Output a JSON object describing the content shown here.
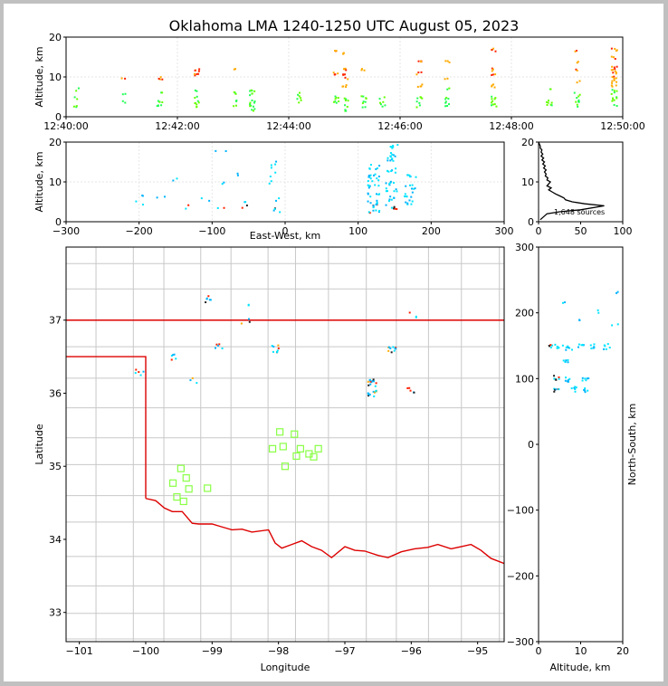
{
  "title": "Oklahoma LMA 1240-1250 UTC August 05, 2023",
  "colors": {
    "border": "#000000",
    "state_line": "#dd0000",
    "county_line": "#c8c8c8",
    "station": "#88ff44",
    "source_scale": [
      "#00e5ff",
      "#00b4ff",
      "#22ff55",
      "#66ff00",
      "#ffaa00",
      "#ff2200",
      "#222222"
    ]
  },
  "chart_data": [
    {
      "type": "scatter",
      "name_id": "time-altitude",
      "xlabel": "",
      "ylabel": "Altitude, km",
      "xlim": [
        "12:40:00",
        "12:50:00"
      ],
      "ylim": [
        0,
        20
      ],
      "x_ticks": [
        "12:40:00",
        "12:42:00",
        "12:44:00",
        "12:46:00",
        "12:48:00",
        "12:50:00"
      ],
      "y_ticks": [
        0,
        10,
        20
      ],
      "grid": true,
      "clusters": [
        {
          "t": "12:40:10",
          "alt": [
            3,
            5,
            7
          ]
        },
        {
          "t": "12:41:00",
          "alt": [
            4,
            6,
            10
          ]
        },
        {
          "t": "12:41:40",
          "alt": [
            3,
            4,
            6,
            10
          ]
        },
        {
          "t": "12:42:20",
          "alt": [
            3,
            4,
            5,
            7,
            11,
            12
          ]
        },
        {
          "t": "12:43:00",
          "alt": [
            3,
            4,
            6,
            12
          ]
        },
        {
          "t": "12:43:20",
          "alt": [
            2,
            3,
            4,
            6,
            7
          ]
        },
        {
          "t": "12:44:10",
          "alt": [
            4,
            5,
            6
          ]
        },
        {
          "t": "12:44:50",
          "alt": [
            4,
            5,
            11,
            17
          ]
        },
        {
          "t": "12:45:00",
          "alt": [
            2,
            3,
            4,
            5,
            8,
            10,
            11,
            12,
            16
          ]
        },
        {
          "t": "12:45:20",
          "alt": [
            3,
            4,
            5,
            12
          ]
        },
        {
          "t": "12:45:40",
          "alt": [
            3,
            4,
            5
          ]
        },
        {
          "t": "12:46:20",
          "alt": [
            3,
            4,
            5,
            8,
            11,
            14
          ]
        },
        {
          "t": "12:46:50",
          "alt": [
            3,
            4,
            5,
            7,
            10,
            14
          ]
        },
        {
          "t": "12:47:40",
          "alt": [
            3,
            4,
            5,
            8,
            11,
            12,
            17
          ]
        },
        {
          "t": "12:48:40",
          "alt": [
            3,
            4,
            7
          ]
        },
        {
          "t": "12:49:10",
          "alt": [
            3,
            4,
            5,
            6,
            9,
            12,
            14,
            17
          ]
        },
        {
          "t": "12:49:50",
          "alt": [
            3,
            4,
            5,
            6,
            7,
            8,
            9,
            10,
            11,
            12,
            13,
            15,
            17
          ]
        }
      ]
    },
    {
      "type": "scatter",
      "name_id": "east-west-altitude",
      "xlabel": "East-West, km",
      "ylabel": "Altitude, km",
      "xlim": [
        -300,
        300
      ],
      "ylim": [
        0,
        20
      ],
      "x_ticks": [
        -300,
        -200,
        -100,
        0,
        100,
        200,
        300
      ],
      "y_ticks": [
        0,
        10,
        20
      ],
      "grid": true,
      "clusters": [
        {
          "x": -200,
          "alt": [
            5,
            7
          ]
        },
        {
          "x": -170,
          "alt": [
            6
          ]
        },
        {
          "x": -150,
          "alt": [
            11
          ]
        },
        {
          "x": -135,
          "alt": [
            4
          ]
        },
        {
          "x": -110,
          "alt": [
            6
          ]
        },
        {
          "x": -90,
          "alt": [
            4,
            10,
            18
          ]
        },
        {
          "x": -60,
          "alt": [
            4,
            5,
            12
          ]
        },
        {
          "x": -15,
          "alt": [
            3,
            4,
            6,
            10,
            12,
            14,
            15
          ]
        },
        {
          "x": 120,
          "alt": [
            3,
            4,
            5,
            7,
            9,
            11,
            12,
            14
          ]
        },
        {
          "x": 145,
          "alt": [
            4,
            6,
            8,
            10,
            13,
            16,
            17,
            19
          ]
        },
        {
          "x": 170,
          "alt": [
            5,
            7,
            9,
            12
          ]
        }
      ]
    },
    {
      "type": "line",
      "name_id": "altitude-histogram",
      "xlabel": "",
      "ylabel": "",
      "xlim": [
        0,
        100
      ],
      "ylim": [
        0,
        20
      ],
      "x_ticks": [
        0,
        50,
        100
      ],
      "y_ticks": [
        0,
        10,
        20
      ],
      "annotation": "1,648 sources",
      "profile": [
        [
          2,
          0.5
        ],
        [
          10,
          2
        ],
        [
          25,
          2.5
        ],
        [
          50,
          3
        ],
        [
          78,
          4
        ],
        [
          55,
          4.5
        ],
        [
          40,
          5
        ],
        [
          32,
          5.5
        ],
        [
          30,
          6
        ],
        [
          25,
          6.5
        ],
        [
          20,
          7
        ],
        [
          16,
          7.5
        ],
        [
          12,
          8
        ],
        [
          15,
          8.5
        ],
        [
          10,
          9
        ],
        [
          12,
          9.5
        ],
        [
          14,
          10
        ],
        [
          10,
          10.5
        ],
        [
          11,
          11
        ],
        [
          8,
          11.5
        ],
        [
          9,
          12
        ],
        [
          7,
          12.5
        ],
        [
          9,
          13
        ],
        [
          6,
          13.5
        ],
        [
          8,
          14
        ],
        [
          5,
          14.5
        ],
        [
          7,
          15
        ],
        [
          4,
          15.5
        ],
        [
          6,
          16
        ],
        [
          3,
          16.5
        ],
        [
          5,
          17
        ],
        [
          3,
          17.5
        ],
        [
          4,
          18
        ],
        [
          2,
          18.5
        ],
        [
          2,
          19
        ],
        [
          1,
          19.5
        ],
        [
          0,
          20
        ]
      ]
    },
    {
      "type": "scatter",
      "name_id": "plan-view-map",
      "xlabel": "Longitude",
      "ylabel": "Latitude",
      "xlim": [
        -101.2,
        -94.6
      ],
      "ylim": [
        32.6,
        38.0
      ],
      "x_ticks": [
        -101,
        -100,
        -99,
        -98,
        -97,
        -96,
        -95
      ],
      "y_ticks": [
        33,
        34,
        35,
        36,
        37
      ],
      "clusters": [
        {
          "lon": -99.1,
          "lat": 37.3,
          "n": 6
        },
        {
          "lon": -98.5,
          "lat": 37.2,
          "n": 2
        },
        {
          "lon": -98.5,
          "lat": 37.0,
          "n": 3
        },
        {
          "lon": -98.9,
          "lat": 36.65,
          "n": 5
        },
        {
          "lon": -98.05,
          "lat": 36.62,
          "n": 8
        },
        {
          "lon": -99.6,
          "lat": 36.5,
          "n": 5
        },
        {
          "lon": -100.1,
          "lat": 36.3,
          "n": 5
        },
        {
          "lon": -99.3,
          "lat": 36.2,
          "n": 3
        },
        {
          "lon": -96.3,
          "lat": 36.6,
          "n": 10
        },
        {
          "lon": -96.0,
          "lat": 37.1,
          "n": 3
        },
        {
          "lon": -96.6,
          "lat": 36.15,
          "n": 12
        },
        {
          "lon": -96.6,
          "lat": 36.0,
          "n": 12
        },
        {
          "lon": -96.0,
          "lat": 36.05,
          "n": 5
        }
      ],
      "stations": [
        [
          -97.98,
          35.47
        ],
        [
          -97.76,
          35.44
        ],
        [
          -98.09,
          35.24
        ],
        [
          -97.93,
          35.27
        ],
        [
          -97.67,
          35.24
        ],
        [
          -97.54,
          35.17
        ],
        [
          -97.4,
          35.24
        ],
        [
          -97.73,
          35.14
        ],
        [
          -97.47,
          35.13
        ],
        [
          -97.9,
          35.0
        ],
        [
          -99.47,
          34.97
        ],
        [
          -99.39,
          34.84
        ],
        [
          -99.59,
          34.77
        ],
        [
          -99.35,
          34.69
        ],
        [
          -99.07,
          34.7
        ],
        [
          -99.53,
          34.58
        ],
        [
          -99.43,
          34.52
        ]
      ],
      "ok_border": {
        "north": [
          [
            -101.2,
            37.0
          ],
          [
            -94.6,
            37.0
          ]
        ],
        "panhandle": [
          [
            -101.2,
            36.5
          ],
          [
            -100.0,
            36.5
          ],
          [
            -100.0,
            34.56
          ]
        ],
        "red_river": [
          [
            -100.0,
            34.56
          ],
          [
            -99.85,
            34.53
          ],
          [
            -99.72,
            34.43
          ],
          [
            -99.6,
            34.38
          ],
          [
            -99.45,
            34.38
          ],
          [
            -99.3,
            34.22
          ],
          [
            -99.2,
            34.21
          ],
          [
            -99.0,
            34.21
          ],
          [
            -98.85,
            34.17
          ],
          [
            -98.7,
            34.13
          ],
          [
            -98.55,
            34.14
          ],
          [
            -98.4,
            34.1
          ],
          [
            -98.15,
            34.13
          ],
          [
            -98.05,
            33.95
          ],
          [
            -97.95,
            33.88
          ],
          [
            -97.8,
            33.93
          ],
          [
            -97.65,
            33.98
          ],
          [
            -97.5,
            33.9
          ],
          [
            -97.35,
            33.85
          ],
          [
            -97.2,
            33.75
          ],
          [
            -97.0,
            33.9
          ],
          [
            -96.85,
            33.85
          ],
          [
            -96.7,
            33.84
          ],
          [
            -96.5,
            33.78
          ],
          [
            -96.35,
            33.75
          ],
          [
            -96.15,
            33.83
          ],
          [
            -95.95,
            33.87
          ],
          [
            -95.75,
            33.89
          ],
          [
            -95.6,
            33.93
          ],
          [
            -95.4,
            33.87
          ],
          [
            -95.25,
            33.9
          ],
          [
            -95.1,
            33.93
          ],
          [
            -94.95,
            33.85
          ],
          [
            -94.8,
            33.74
          ],
          [
            -94.6,
            33.67
          ]
        ]
      }
    },
    {
      "type": "scatter",
      "name_id": "altitude-north-south",
      "xlabel": "Altitude, km",
      "ylabel": "North-South, km",
      "xlim": [
        0,
        20
      ],
      "ylim": [
        -300,
        300
      ],
      "x_ticks": [
        0,
        10,
        20
      ],
      "y_ticks": [
        -300,
        -200,
        -100,
        0,
        100,
        200,
        300
      ],
      "clusters": [
        {
          "alt": 3,
          "ns": 150
        },
        {
          "alt": 5,
          "ns": 150
        },
        {
          "alt": 7,
          "ns": 148
        },
        {
          "alt": 10,
          "ns": 150
        },
        {
          "alt": 13,
          "ns": 150
        },
        {
          "alt": 16,
          "ns": 150
        },
        {
          "alt": 4,
          "ns": 102
        },
        {
          "alt": 7,
          "ns": 100
        },
        {
          "alt": 11,
          "ns": 100
        },
        {
          "alt": 4,
          "ns": 85
        },
        {
          "alt": 8,
          "ns": 85
        },
        {
          "alt": 11,
          "ns": 83
        },
        {
          "alt": 6,
          "ns": 130
        },
        {
          "alt": 9,
          "ns": 190
        },
        {
          "alt": 6,
          "ns": 220
        },
        {
          "alt": 14,
          "ns": 205
        },
        {
          "alt": 18,
          "ns": 180
        },
        {
          "alt": 19,
          "ns": 230
        }
      ]
    }
  ]
}
